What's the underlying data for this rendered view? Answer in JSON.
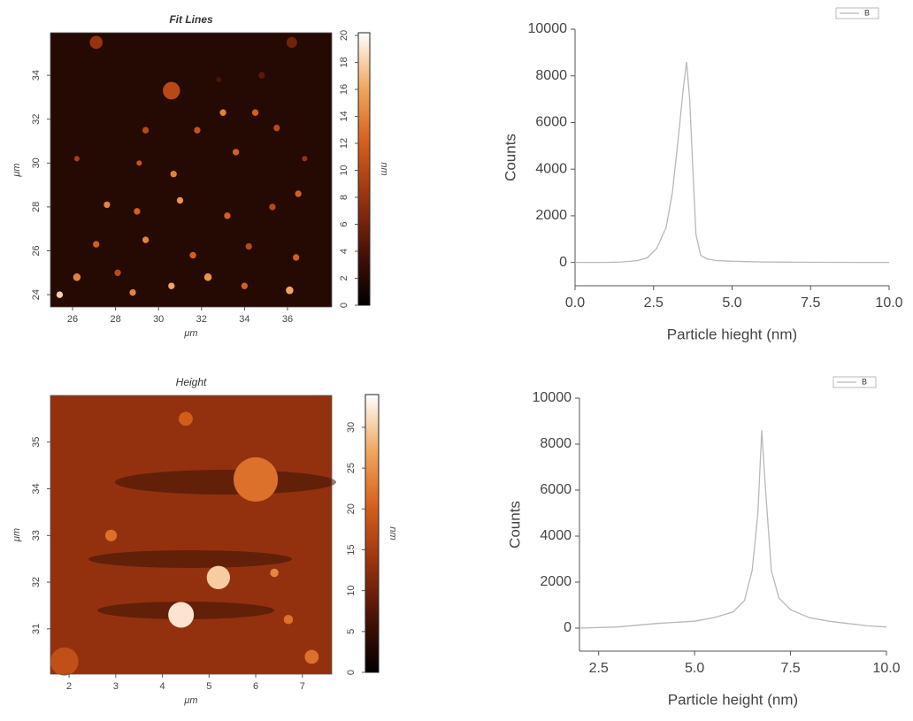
{
  "chart_data": [
    {
      "type": "heatmap",
      "title": "Fit Lines",
      "xlabel": "μm",
      "ylabel": "μm",
      "colorbar_label": "nm",
      "xlim": [
        24.97,
        38.06
      ],
      "xticks": [
        26,
        28,
        30,
        32,
        34,
        36
      ],
      "ylim": [
        23.44,
        35.94
      ],
      "yticks": [
        24,
        26,
        28,
        30,
        32,
        34
      ],
      "clim": [
        0,
        20.2
      ],
      "cticks": [
        0,
        2,
        4,
        6,
        8,
        10,
        12,
        14,
        16,
        18,
        20
      ],
      "colormap": [
        "#000000",
        "#4a1206",
        "#9a3410",
        "#d6601c",
        "#f0a860",
        "#ffffff"
      ],
      "background_value": 2,
      "spots": {
        "x": [
          30.6,
          27.1,
          36.2,
          34.8,
          32.8,
          33.0,
          34.5,
          29.4,
          31.8,
          35.5,
          26.2,
          29.1,
          33.6,
          36.8,
          30.7,
          27.6,
          29.0,
          31.0,
          33.2,
          35.3,
          36.5,
          27.1,
          29.4,
          31.6,
          34.2,
          36.4,
          26.2,
          28.1,
          30.6,
          32.3,
          34.0,
          36.1,
          25.4,
          28.8
        ],
        "y": [
          33.3,
          35.5,
          35.5,
          34.0,
          33.8,
          32.3,
          32.3,
          31.5,
          31.5,
          31.6,
          30.2,
          30.0,
          30.5,
          30.2,
          29.5,
          28.1,
          27.8,
          28.3,
          27.6,
          28.0,
          28.6,
          26.3,
          26.5,
          25.8,
          26.2,
          25.7,
          24.8,
          25.0,
          24.4,
          24.8,
          24.4,
          24.2,
          24.0,
          24.1
        ],
        "values": [
          10,
          8,
          6,
          5,
          4,
          14,
          12,
          10,
          11,
          10,
          9,
          11,
          12,
          8,
          14,
          14,
          12,
          15,
          12,
          10,
          12,
          12,
          14,
          12,
          10,
          12,
          14,
          10,
          16,
          15,
          12,
          16,
          18,
          14
        ],
        "sizes": [
          0.8,
          0.6,
          0.5,
          0.3,
          0.25,
          0.3,
          0.3,
          0.3,
          0.3,
          0.3,
          0.25,
          0.25,
          0.3,
          0.25,
          0.3,
          0.3,
          0.3,
          0.3,
          0.3,
          0.3,
          0.3,
          0.3,
          0.3,
          0.3,
          0.3,
          0.3,
          0.35,
          0.3,
          0.3,
          0.35,
          0.3,
          0.35,
          0.3,
          0.3
        ]
      }
    },
    {
      "type": "line",
      "xlabel": "Particle hieght (nm)",
      "ylabel": "Counts",
      "xlim": [
        0,
        10
      ],
      "xticks": [
        {
          "value": 0,
          "label": "0.0"
        },
        2.5,
        {
          "value": 5,
          "label": "5.0"
        },
        7.5,
        {
          "value": 10,
          "label": "10.0"
        }
      ],
      "ylim": [
        -1000,
        10000
      ],
      "yticks": [
        0,
        2000,
        4000,
        6000,
        8000,
        10000
      ],
      "legend": "upper right",
      "series": [
        {
          "name": "B",
          "color": "#b8b8b8",
          "x": [
            0,
            0.5,
            1,
            1.5,
            2,
            2.3,
            2.6,
            2.9,
            3.1,
            3.3,
            3.45,
            3.55,
            3.65,
            3.75,
            3.85,
            4.0,
            4.2,
            4.5,
            5,
            6,
            7,
            8,
            9,
            10
          ],
          "values": [
            0,
            0,
            0,
            20,
            80,
            200,
            600,
            1500,
            3000,
            5500,
            7500,
            8600,
            7000,
            4000,
            1200,
            300,
            150,
            80,
            50,
            20,
            10,
            5,
            0,
            0
          ]
        }
      ]
    },
    {
      "type": "heatmap",
      "title": "Height",
      "xlabel": "μm",
      "ylabel": "μm",
      "colorbar_label": "nm",
      "xlim": [
        1.6,
        7.63
      ],
      "xticks": [
        2,
        3,
        4,
        5,
        6,
        7
      ],
      "ylim": [
        30.03,
        36.0
      ],
      "yticks": [
        31,
        32,
        33,
        34,
        35
      ],
      "clim": [
        0,
        34
      ],
      "cticks": [
        0,
        5,
        10,
        15,
        20,
        25,
        30
      ],
      "colormap": [
        "#000000",
        "#4a1206",
        "#9a3410",
        "#d6601c",
        "#f0a860",
        "#ffffff"
      ],
      "background_value": 13,
      "spots": {
        "x": [
          6.0,
          5.2,
          4.4,
          2.9,
          4.5,
          6.7,
          6.4,
          7.2,
          1.9
        ],
        "y": [
          34.2,
          32.1,
          31.3,
          33.0,
          35.5,
          31.2,
          32.2,
          30.4,
          30.3
        ],
        "values": [
          22,
          30,
          32,
          22,
          20,
          22,
          24,
          22,
          18
        ],
        "sizes": [
          0.95,
          0.5,
          0.55,
          0.25,
          0.3,
          0.2,
          0.18,
          0.3,
          0.6
        ]
      }
    },
    {
      "type": "line",
      "xlabel": "Particle height (nm)",
      "ylabel": "Counts",
      "xlim": [
        2,
        10
      ],
      "xticks": [
        2.5,
        {
          "value": 5,
          "label": "5.0"
        },
        7.5,
        {
          "value": 10,
          "label": "10.0"
        }
      ],
      "ylim": [
        -1000,
        10000
      ],
      "yticks": [
        0,
        2000,
        4000,
        6000,
        8000,
        10000
      ],
      "legend": "upper right",
      "series": [
        {
          "name": "B",
          "color": "#b8b8b8",
          "x": [
            2,
            3,
            4,
            5,
            5.5,
            6,
            6.3,
            6.5,
            6.65,
            6.75,
            6.85,
            7.0,
            7.2,
            7.5,
            8,
            8.5,
            9,
            9.5,
            10
          ],
          "values": [
            0,
            50,
            200,
            300,
            450,
            700,
            1200,
            2500,
            5000,
            8600,
            6000,
            2500,
            1300,
            800,
            450,
            300,
            200,
            100,
            50
          ]
        }
      ]
    }
  ]
}
